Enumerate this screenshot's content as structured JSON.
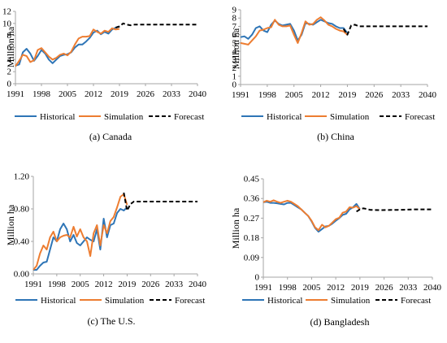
{
  "chart_data": [
    {
      "type": "line",
      "caption": "(a) Canada",
      "ylabel": "Million ha",
      "ylim": [
        0,
        12
      ],
      "yticks": [
        "0",
        "2",
        "4",
        "6",
        "8",
        "10",
        "12"
      ],
      "xlim": [
        1991,
        2040
      ],
      "xticks": [
        "1991",
        "1998",
        "2005",
        "2012",
        "2019",
        "2026",
        "2033",
        "2040"
      ],
      "series": [
        {
          "name": "Historical",
          "color": "#2E75B6",
          "style": "solid",
          "x": [
            1991,
            1992,
            1993,
            1994,
            1995,
            1996,
            1997,
            1998,
            1999,
            2000,
            2001,
            2002,
            2003,
            2004,
            2005,
            2006,
            2007,
            2008,
            2009,
            2010,
            2011,
            2012,
            2013,
            2014,
            2015,
            2016,
            2017,
            2018,
            2019
          ],
          "y": [
            3.0,
            3.2,
            5.2,
            5.8,
            5.0,
            3.8,
            4.6,
            5.6,
            5.0,
            4.0,
            3.4,
            4.0,
            4.6,
            4.8,
            4.9,
            5.2,
            6.0,
            6.5,
            6.5,
            7.0,
            7.6,
            8.5,
            8.8,
            8.2,
            8.6,
            8.3,
            9.0,
            9.3,
            9.5
          ]
        },
        {
          "name": "Simulation",
          "color": "#ED7D31",
          "style": "solid",
          "x": [
            1991,
            1992,
            1993,
            1994,
            1995,
            1996,
            1997,
            1998,
            1999,
            2000,
            2001,
            2002,
            2003,
            2004,
            2005,
            2006,
            2007,
            2008,
            2009,
            2010,
            2011,
            2012,
            2013,
            2014,
            2015,
            2016,
            2017,
            2018,
            2019
          ],
          "y": [
            2.9,
            3.8,
            4.8,
            4.6,
            3.6,
            3.9,
            5.6,
            5.9,
            5.2,
            4.5,
            4.0,
            4.3,
            4.8,
            5.0,
            4.7,
            5.3,
            6.5,
            7.5,
            7.8,
            7.8,
            7.9,
            9.0,
            8.6,
            8.3,
            8.8,
            8.6,
            9.2,
            9.0,
            9.1
          ]
        },
        {
          "name": "Forecast",
          "color": "#000000",
          "style": "dashed",
          "x": [
            2018,
            2019,
            2020,
            2021,
            2022,
            2023,
            2026,
            2030,
            2035,
            2040
          ],
          "y": [
            9.3,
            9.5,
            10.0,
            9.8,
            9.7,
            9.8,
            9.8,
            9.8,
            9.8,
            9.8
          ]
        }
      ]
    },
    {
      "type": "line",
      "caption": "(b) China",
      "ylabel": "Million ha",
      "ylim": [
        0,
        9
      ],
      "yticks": [
        "0",
        "1",
        "2",
        "3",
        "4",
        "5",
        "6",
        "7",
        "8",
        "9"
      ],
      "xlim": [
        1991,
        2040
      ],
      "xticks": [
        "1991",
        "1998",
        "2005",
        "2012",
        "2019",
        "2026",
        "2033",
        "2040"
      ],
      "series": [
        {
          "name": "Historical",
          "color": "#2E75B6",
          "style": "solid",
          "x": [
            1991,
            1992,
            1993,
            1994,
            1995,
            1996,
            1997,
            1998,
            1999,
            2000,
            2001,
            2002,
            2003,
            2004,
            2005,
            2006,
            2007,
            2008,
            2009,
            2010,
            2011,
            2012,
            2013,
            2014,
            2015,
            2016,
            2017,
            2018,
            2019
          ],
          "y": [
            5.7,
            5.8,
            5.5,
            6.0,
            6.8,
            7.0,
            6.5,
            6.3,
            7.2,
            7.7,
            7.3,
            7.1,
            7.2,
            7.3,
            6.5,
            5.3,
            6.0,
            7.4,
            7.3,
            7.2,
            7.5,
            7.8,
            7.6,
            7.4,
            7.3,
            7.0,
            6.8,
            6.8,
            6.2
          ]
        },
        {
          "name": "Simulation",
          "color": "#ED7D31",
          "style": "solid",
          "x": [
            1991,
            1992,
            1993,
            1994,
            1995,
            1996,
            1997,
            1998,
            1999,
            2000,
            2001,
            2002,
            2003,
            2004,
            2005,
            2006,
            2007,
            2008,
            2009,
            2010,
            2011,
            2012,
            2013,
            2014,
            2015,
            2016,
            2017,
            2018,
            2019
          ],
          "y": [
            5.0,
            4.9,
            4.8,
            5.3,
            5.8,
            6.5,
            6.6,
            6.8,
            6.9,
            7.8,
            7.2,
            7.0,
            7.0,
            7.1,
            6.0,
            5.0,
            6.2,
            7.6,
            7.2,
            7.3,
            7.8,
            8.1,
            7.7,
            7.2,
            7.0,
            6.7,
            6.5,
            6.4,
            6.0
          ]
        },
        {
          "name": "Forecast",
          "color": "#000000",
          "style": "dashed",
          "x": [
            2018,
            2019,
            2020,
            2021,
            2022,
            2025,
            2030,
            2035,
            2040
          ],
          "y": [
            6.7,
            6.0,
            7.1,
            7.2,
            7.0,
            7.0,
            7.0,
            7.0,
            7.0
          ]
        }
      ]
    },
    {
      "type": "line",
      "caption": "(c) The U.S.",
      "ylabel": "Million ha",
      "ylim": [
        0,
        1.2
      ],
      "yticks": [
        "0.00",
        "0.40",
        "0.80",
        "1.20"
      ],
      "xlim": [
        1991,
        2040
      ],
      "xticks": [
        "1991",
        "1998",
        "2005",
        "2012",
        "2019",
        "2026",
        "2033",
        "2040"
      ],
      "series": [
        {
          "name": "Historical",
          "color": "#2E75B6",
          "style": "solid",
          "x": [
            1991,
            1992,
            1993,
            1994,
            1995,
            1996,
            1997,
            1998,
            1999,
            2000,
            2001,
            2002,
            2003,
            2004,
            2005,
            2006,
            2007,
            2008,
            2009,
            2010,
            2011,
            2012,
            2013,
            2014,
            2015,
            2016,
            2017,
            2018,
            2019
          ],
          "y": [
            0.05,
            0.05,
            0.1,
            0.14,
            0.15,
            0.3,
            0.45,
            0.4,
            0.55,
            0.62,
            0.55,
            0.4,
            0.48,
            0.38,
            0.35,
            0.4,
            0.45,
            0.42,
            0.4,
            0.55,
            0.3,
            0.68,
            0.45,
            0.6,
            0.62,
            0.75,
            0.8,
            0.78,
            0.82
          ]
        },
        {
          "name": "Simulation",
          "color": "#ED7D31",
          "style": "solid",
          "x": [
            1991,
            1992,
            1993,
            1994,
            1995,
            1996,
            1997,
            1998,
            1999,
            2000,
            2001,
            2002,
            2003,
            2004,
            2005,
            2006,
            2007,
            2008,
            2009,
            2010,
            2011,
            2012,
            2013,
            2014,
            2015,
            2016,
            2017,
            2018,
            2019
          ],
          "y": [
            0.05,
            0.1,
            0.25,
            0.35,
            0.3,
            0.45,
            0.52,
            0.4,
            0.45,
            0.47,
            0.48,
            0.45,
            0.58,
            0.46,
            0.55,
            0.45,
            0.4,
            0.22,
            0.5,
            0.6,
            0.35,
            0.6,
            0.5,
            0.65,
            0.7,
            0.82,
            0.95,
            0.98,
            0.85
          ]
        },
        {
          "name": "Forecast",
          "color": "#000000",
          "style": "dashed",
          "x": [
            2018,
            2019,
            2020,
            2021,
            2022,
            2025,
            2030,
            2035,
            2040
          ],
          "y": [
            1.0,
            0.78,
            0.86,
            0.89,
            0.89,
            0.89,
            0.89,
            0.89,
            0.89
          ]
        }
      ]
    },
    {
      "type": "line",
      "caption": "(d) Bangladesh",
      "ylabel": "Million ha",
      "ylim": [
        0,
        0.45
      ],
      "yticks": [
        "0",
        "0.09",
        "0.18",
        "0.27",
        "0.36",
        "0.45"
      ],
      "xlim": [
        1991,
        2040
      ],
      "xticks": [
        "1991",
        "1998",
        "2005",
        "2012",
        "2019",
        "2026",
        "2033",
        "2040"
      ],
      "series": [
        {
          "name": "Historical",
          "color": "#2E75B6",
          "style": "solid",
          "x": [
            1991,
            1992,
            1993,
            1994,
            1995,
            1996,
            1997,
            1998,
            1999,
            2000,
            2001,
            2002,
            2003,
            2004,
            2005,
            2006,
            2007,
            2008,
            2009,
            2010,
            2011,
            2012,
            2013,
            2014,
            2015,
            2016,
            2017,
            2018,
            2019
          ],
          "y": [
            0.343,
            0.345,
            0.34,
            0.34,
            0.338,
            0.335,
            0.333,
            0.34,
            0.34,
            0.33,
            0.32,
            0.31,
            0.295,
            0.28,
            0.255,
            0.225,
            0.208,
            0.22,
            0.232,
            0.235,
            0.245,
            0.258,
            0.27,
            0.285,
            0.29,
            0.31,
            0.32,
            0.335,
            0.31
          ]
        },
        {
          "name": "Simulation",
          "color": "#ED7D31",
          "style": "solid",
          "x": [
            1991,
            1992,
            1993,
            1994,
            1995,
            1996,
            1997,
            1998,
            1999,
            2000,
            2001,
            2002,
            2003,
            2004,
            2005,
            2006,
            2007,
            2008,
            2009,
            2010,
            2011,
            2012,
            2013,
            2014,
            2015,
            2016,
            2017,
            2018,
            2019
          ],
          "y": [
            0.343,
            0.35,
            0.345,
            0.352,
            0.345,
            0.34,
            0.345,
            0.35,
            0.345,
            0.335,
            0.325,
            0.31,
            0.295,
            0.28,
            0.258,
            0.228,
            0.215,
            0.24,
            0.228,
            0.235,
            0.25,
            0.265,
            0.272,
            0.295,
            0.3,
            0.32,
            0.318,
            0.325,
            0.31
          ]
        },
        {
          "name": "Forecast",
          "color": "#000000",
          "style": "dashed",
          "x": [
            2018,
            2019,
            2020,
            2021,
            2022,
            2025,
            2030,
            2035,
            2040
          ],
          "y": [
            0.3,
            0.31,
            0.315,
            0.312,
            0.308,
            0.307,
            0.308,
            0.31,
            0.31
          ]
        }
      ]
    }
  ]
}
